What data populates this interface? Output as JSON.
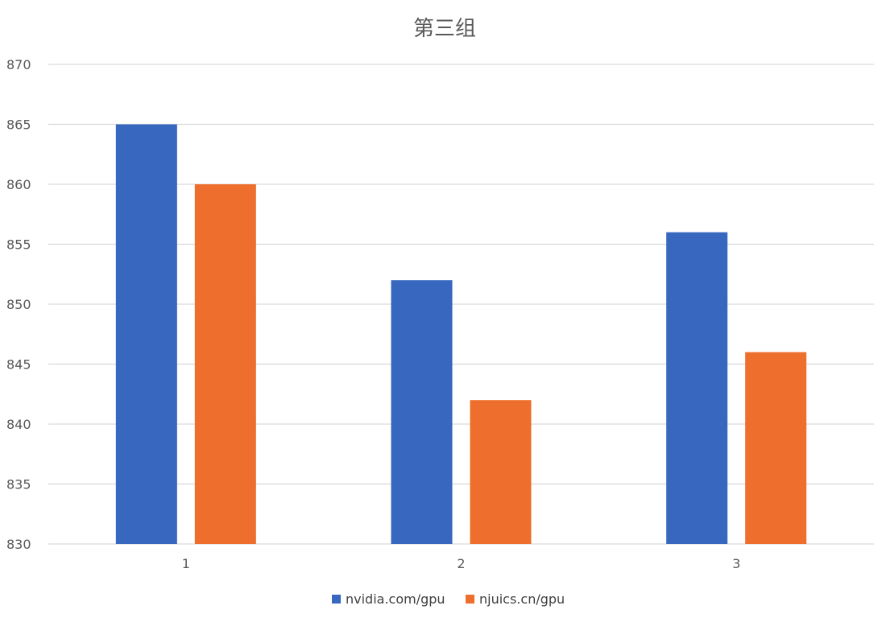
{
  "chart_data": {
    "type": "bar",
    "title": "第三组",
    "xlabel": "",
    "ylabel": "",
    "categories": [
      "1",
      "2",
      "3"
    ],
    "series": [
      {
        "name": "nvidia.com/gpu",
        "color": "#3767BE",
        "values": [
          865,
          852,
          856
        ]
      },
      {
        "name": "njuics.cn/gpu",
        "color": "#EE6F2D",
        "values": [
          860,
          842,
          846
        ]
      }
    ],
    "ylim": [
      830,
      870
    ],
    "yticks": [
      830,
      835,
      840,
      845,
      850,
      855,
      860,
      865,
      870
    ],
    "grid": true,
    "legend_position": "bottom"
  }
}
